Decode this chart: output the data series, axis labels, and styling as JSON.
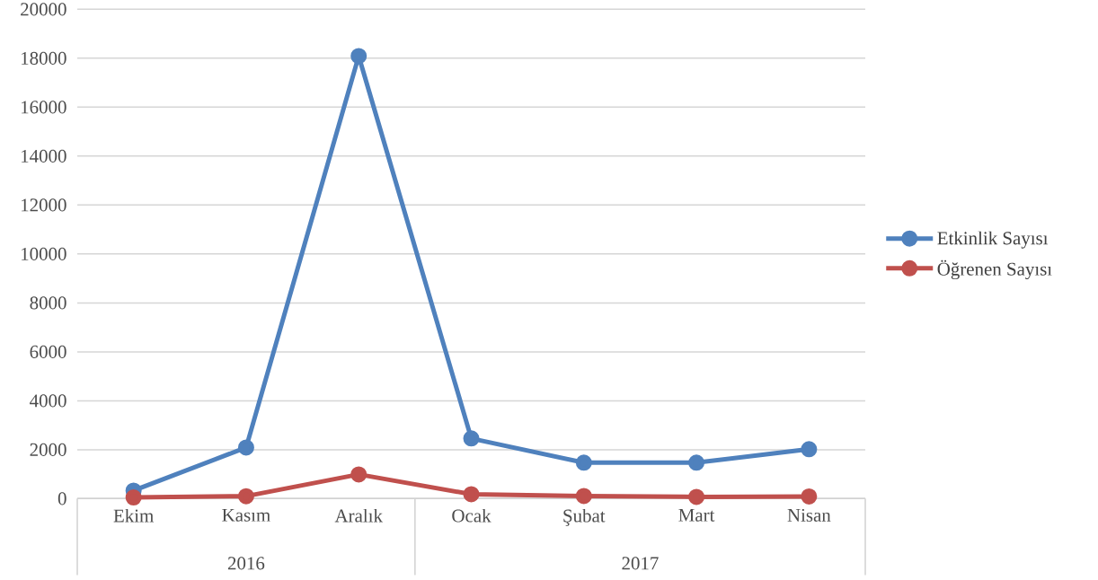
{
  "chart_data": {
    "type": "line",
    "categories": [
      "Ekim",
      "Kasım",
      "Aralık",
      "Ocak",
      "Şubat",
      "Mart",
      "Nisan"
    ],
    "series": [
      {
        "name": "Etkinlik Sayısı",
        "color": "#4f81bd",
        "values": [
          330,
          2090,
          18090,
          2460,
          1470,
          1470,
          2020
        ]
      },
      {
        "name": "Öğrenen Sayısı",
        "color": "#c0504d",
        "values": [
          50,
          100,
          990,
          180,
          110,
          70,
          90
        ]
      }
    ],
    "annotations": [
      "2016",
      "2017"
    ],
    "ylim": [
      0,
      20000
    ],
    "yticks": [
      0,
      2000,
      4000,
      6000,
      8000,
      10000,
      12000,
      14000,
      16000,
      18000,
      20000
    ],
    "grid": "y",
    "legend": "right",
    "marker": "circle",
    "line_style": "solid"
  }
}
